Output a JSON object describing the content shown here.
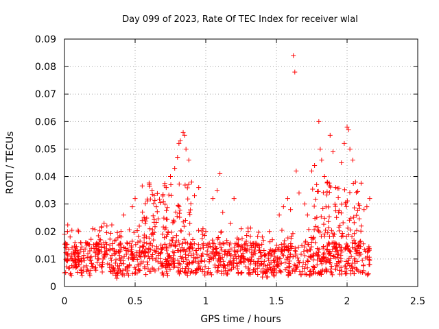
{
  "chart_data": {
    "type": "scatter",
    "title": "Day 099 of 2023, Rate Of TEC Index for receiver wlal",
    "xlabel": "GPS time / hours",
    "ylabel": "ROTI / TECUs",
    "xlim": [
      0,
      2.5
    ],
    "ylim": [
      0,
      0.09
    ],
    "x_ticks": [
      "0",
      "0.5",
      "1",
      "1.5",
      "2",
      "2.5"
    ],
    "y_ticks": [
      "0",
      "0.01",
      "0.02",
      "0.03",
      "0.04",
      "0.05",
      "0.06",
      "0.07",
      "0.08",
      "0.09"
    ],
    "x_tick_values": [
      0,
      0.5,
      1,
      1.5,
      2,
      2.5
    ],
    "y_tick_values": [
      0,
      0.01,
      0.02,
      0.03,
      0.04,
      0.05,
      0.06,
      0.07,
      0.08,
      0.09
    ],
    "grid": true,
    "marker": "plus",
    "color": "#ff0000",
    "x_range_of_data": [
      0,
      2.16
    ],
    "series": [
      {
        "points": [
          [
            0.0,
            0.005
          ],
          [
            0.0,
            0.019
          ],
          [
            0.02,
            0.012
          ],
          [
            0.04,
            0.018
          ],
          [
            0.06,
            0.007
          ],
          [
            0.08,
            0.014
          ],
          [
            0.1,
            0.02
          ],
          [
            0.12,
            0.009
          ],
          [
            0.15,
            0.016
          ],
          [
            0.18,
            0.004
          ],
          [
            0.2,
            0.021
          ],
          [
            0.22,
            0.011
          ],
          [
            0.25,
            0.017
          ],
          [
            0.28,
            0.023
          ],
          [
            0.3,
            0.022
          ],
          [
            0.32,
            0.008
          ],
          [
            0.35,
            0.006
          ],
          [
            0.37,
            0.003
          ],
          [
            0.4,
            0.018
          ],
          [
            0.42,
            0.026
          ],
          [
            0.45,
            0.013
          ],
          [
            0.48,
            0.029
          ],
          [
            0.5,
            0.032
          ],
          [
            0.52,
            0.008
          ],
          [
            0.55,
            0.024
          ],
          [
            0.58,
            0.018
          ],
          [
            0.6,
            0.037
          ],
          [
            0.62,
            0.035
          ],
          [
            0.65,
            0.029
          ],
          [
            0.68,
            0.012
          ],
          [
            0.7,
            0.031
          ],
          [
            0.72,
            0.036
          ],
          [
            0.75,
            0.04
          ],
          [
            0.78,
            0.043
          ],
          [
            0.8,
            0.047
          ],
          [
            0.81,
            0.052
          ],
          [
            0.82,
            0.053
          ],
          [
            0.84,
            0.056
          ],
          [
            0.85,
            0.055
          ],
          [
            0.86,
            0.05
          ],
          [
            0.88,
            0.046
          ],
          [
            0.9,
            0.038
          ],
          [
            0.92,
            0.033
          ],
          [
            0.95,
            0.036
          ],
          [
            0.98,
            0.021
          ],
          [
            1.0,
            0.02
          ],
          [
            1.05,
            0.032
          ],
          [
            1.08,
            0.035
          ],
          [
            1.1,
            0.041
          ],
          [
            1.12,
            0.027
          ],
          [
            1.15,
            0.016
          ],
          [
            1.2,
            0.032
          ],
          [
            1.25,
            0.021
          ],
          [
            1.3,
            0.02
          ],
          [
            1.35,
            0.012
          ],
          [
            1.4,
            0.018
          ],
          [
            1.45,
            0.02
          ],
          [
            1.5,
            0.005
          ],
          [
            1.52,
            0.026
          ],
          [
            1.55,
            0.029
          ],
          [
            1.58,
            0.032
          ],
          [
            1.6,
            0.028
          ],
          [
            1.62,
            0.084
          ],
          [
            1.63,
            0.078
          ],
          [
            1.64,
            0.042
          ],
          [
            1.66,
            0.034
          ],
          [
            1.7,
            0.03
          ],
          [
            1.72,
            0.026
          ],
          [
            1.75,
            0.042
          ],
          [
            1.77,
            0.044
          ],
          [
            1.8,
            0.06
          ],
          [
            1.81,
            0.05
          ],
          [
            1.82,
            0.046
          ],
          [
            1.84,
            0.04
          ],
          [
            1.86,
            0.038
          ],
          [
            1.88,
            0.055
          ],
          [
            1.9,
            0.049
          ],
          [
            1.92,
            0.036
          ],
          [
            1.94,
            0.027
          ],
          [
            1.96,
            0.045
          ],
          [
            1.98,
            0.052
          ],
          [
            2.0,
            0.058
          ],
          [
            2.01,
            0.057
          ],
          [
            2.02,
            0.05
          ],
          [
            2.04,
            0.046
          ],
          [
            2.06,
            0.038
          ],
          [
            2.08,
            0.03
          ],
          [
            2.1,
            0.022
          ],
          [
            2.12,
            0.028
          ],
          [
            2.14,
            0.029
          ],
          [
            2.16,
            0.032
          ],
          [
            2.16,
            0.008
          ]
        ]
      }
    ],
    "dense_band": {
      "x_range": [
        0,
        2.16
      ],
      "y_range": [
        0.003,
        0.022
      ],
      "note_density": "approx 1500 points"
    }
  }
}
